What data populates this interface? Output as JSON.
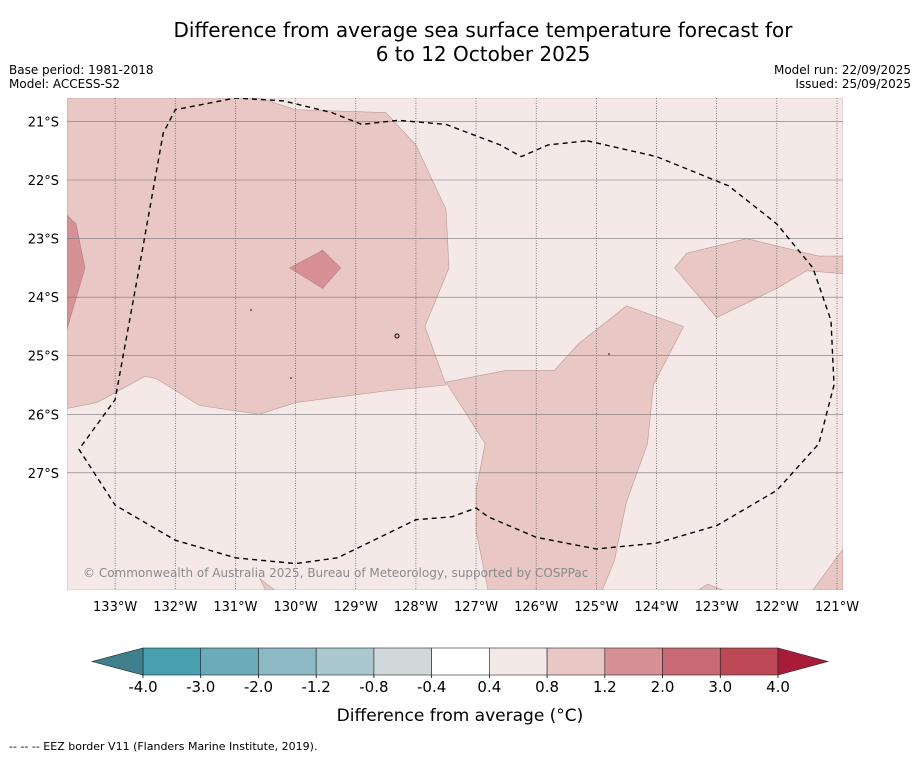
{
  "title_line1": "Difference from average sea surface temperature forecast for",
  "title_line2": "6 to 12 October 2025",
  "base_period": "Base period: 1981-2018",
  "model": "Model: ACCESS-S2",
  "model_run": "Model run: 22/09/2025",
  "issued": "Issued: 25/09/2025",
  "copyright": "© Commonwealth of Australia 2025, Bureau of Meteorology, supported by COSPPac",
  "footnote": "-- -- -- EEZ border V11 (Flanders Marine Institute, 2019).",
  "chart_data": {
    "type": "heatmap",
    "xlabel": "",
    "ylabel": "",
    "xlim": [
      -133.8,
      -120.9
    ],
    "ylim": [
      -29.0,
      -20.6
    ],
    "x_ticks": [
      -133,
      -132,
      -131,
      -130,
      -129,
      -128,
      -127,
      -126,
      -125,
      -124,
      -123,
      -122,
      -121
    ],
    "x_tick_labels": [
      "133°W",
      "132°W",
      "131°W",
      "130°W",
      "129°W",
      "128°W",
      "127°W",
      "126°W",
      "125°W",
      "124°W",
      "123°W",
      "122°W",
      "121°W"
    ],
    "y_ticks": [
      -21,
      -22,
      -23,
      -24,
      -25,
      -26,
      -27
    ],
    "y_tick_labels": [
      "21°S",
      "22°S",
      "23°S",
      "24°S",
      "25°S",
      "26°S",
      "27°S"
    ],
    "grid": true,
    "regions": [
      {
        "category": "0.4 to 0.8",
        "color": "#f5e9e8",
        "polygon": [
          [
            -133.8,
            -20.6
          ],
          [
            -120.9,
            -20.6
          ],
          [
            -120.9,
            -29.0
          ],
          [
            -133.8,
            -29.0
          ]
        ]
      },
      {
        "category": "0.8 to 1.2",
        "color": "#e8c7c4",
        "polygon": [
          [
            -133.8,
            -20.6
          ],
          [
            -130.6,
            -20.6
          ],
          [
            -130.0,
            -20.8
          ],
          [
            -128.5,
            -20.85
          ],
          [
            -128.0,
            -21.4
          ],
          [
            -127.5,
            -22.5
          ],
          [
            -127.45,
            -23.5
          ],
          [
            -127.85,
            -24.5
          ],
          [
            -127.5,
            -25.5
          ],
          [
            -128.5,
            -25.6
          ],
          [
            -130.0,
            -25.8
          ],
          [
            -130.6,
            -26.0
          ],
          [
            -131.6,
            -25.85
          ],
          [
            -132.3,
            -25.4
          ],
          [
            -132.5,
            -25.35
          ],
          [
            -133.3,
            -25.8
          ],
          [
            -133.8,
            -25.9
          ]
        ]
      },
      {
        "category": "0.8 to 1.2",
        "color": "#e8c7c4",
        "polygon": [
          [
            -127.5,
            -25.45
          ],
          [
            -126.5,
            -25.25
          ],
          [
            -125.7,
            -25.25
          ],
          [
            -125.3,
            -24.8
          ],
          [
            -124.5,
            -24.15
          ],
          [
            -123.55,
            -24.5
          ],
          [
            -124.05,
            -25.5
          ],
          [
            -124.15,
            -26.5
          ],
          [
            -124.5,
            -27.5
          ],
          [
            -124.7,
            -28.5
          ],
          [
            -124.9,
            -29.0
          ],
          [
            -126.8,
            -29.0
          ],
          [
            -127.0,
            -28.0
          ],
          [
            -127.0,
            -27.3
          ],
          [
            -126.85,
            -26.5
          ]
        ]
      },
      {
        "category": "0.8 to 1.2",
        "color": "#e8c7c4",
        "polygon": [
          [
            -123.0,
            -24.35
          ],
          [
            -122.0,
            -23.85
          ],
          [
            -121.5,
            -23.55
          ],
          [
            -120.9,
            -23.6
          ],
          [
            -120.9,
            -23.3
          ],
          [
            -121.3,
            -23.3
          ],
          [
            -122.5,
            -23.0
          ],
          [
            -123.5,
            -23.25
          ],
          [
            -123.7,
            -23.5
          ]
        ]
      },
      {
        "category": "0.8 to 1.2",
        "color": "#e8c7c4",
        "polygon": [
          [
            -120.9,
            -29.0
          ],
          [
            -121.4,
            -29.0
          ],
          [
            -120.9,
            -28.3
          ]
        ]
      },
      {
        "category": "0.8 to 1.2",
        "color": "#e8c7c4",
        "polygon": [
          [
            -130.5,
            -29.0
          ],
          [
            -130.6,
            -28.8
          ],
          [
            -130.35,
            -29.0
          ]
        ]
      },
      {
        "category": "0.8 to 1.2",
        "color": "#e8c7c4",
        "polygon": [
          [
            -123.3,
            -29.0
          ],
          [
            -123.15,
            -28.9
          ],
          [
            -122.9,
            -29.0
          ]
        ]
      },
      {
        "category": "1.2 to 2.0",
        "color": "#d69096",
        "polygon": [
          [
            -133.8,
            -22.6
          ],
          [
            -133.65,
            -22.75
          ],
          [
            -133.5,
            -23.5
          ],
          [
            -133.8,
            -24.55
          ]
        ]
      },
      {
        "category": "1.2 to 2.0",
        "color": "#d69096",
        "polygon": [
          [
            -130.1,
            -23.5
          ],
          [
            -129.55,
            -23.2
          ],
          [
            -129.25,
            -23.5
          ],
          [
            -129.55,
            -23.85
          ]
        ]
      }
    ],
    "eez_border": [
      [
        -125.15,
        -21.33
      ],
      [
        -124.0,
        -21.6
      ],
      [
        -122.8,
        -22.1
      ],
      [
        -122.0,
        -22.75
      ],
      [
        -121.4,
        -23.5
      ],
      [
        -121.1,
        -24.4
      ],
      [
        -121.05,
        -25.5
      ],
      [
        -121.3,
        -26.5
      ],
      [
        -122.0,
        -27.3
      ],
      [
        -123.0,
        -27.9
      ],
      [
        -124.0,
        -28.2
      ],
      [
        -125.0,
        -28.3
      ],
      [
        -126.0,
        -28.1
      ],
      [
        -126.8,
        -27.75
      ],
      [
        -127.0,
        -27.6
      ],
      [
        -127.4,
        -27.75
      ],
      [
        -128.0,
        -27.8
      ],
      [
        -128.6,
        -28.1
      ],
      [
        -129.3,
        -28.45
      ],
      [
        -130.0,
        -28.55
      ],
      [
        -131.0,
        -28.45
      ],
      [
        -132.0,
        -28.15
      ],
      [
        -133.0,
        -27.55
      ],
      [
        -133.6,
        -26.6
      ],
      [
        -133.0,
        -25.75
      ],
      [
        -132.6,
        -23.5
      ],
      [
        -132.2,
        -21.2
      ],
      [
        -132.0,
        -20.8
      ],
      [
        -131.0,
        -20.6
      ],
      [
        -130.2,
        -20.65
      ],
      [
        -129.4,
        -20.85
      ],
      [
        -128.9,
        -21.05
      ],
      [
        -128.3,
        -20.98
      ],
      [
        -127.5,
        -21.05
      ],
      [
        -126.6,
        -21.4
      ],
      [
        -126.25,
        -21.6
      ],
      [
        -125.8,
        -21.4
      ],
      [
        -125.15,
        -21.33
      ]
    ],
    "colorbar": {
      "label": "Difference from average (°C)",
      "ticks": [
        "-4.0",
        "-3.0",
        "-2.0",
        "-1.2",
        "-0.8",
        "-0.4",
        "0.4",
        "0.8",
        "1.2",
        "2.0",
        "3.0",
        "4.0"
      ],
      "colors": [
        "#48a0b0",
        "#6bacba",
        "#8cb9c4",
        "#aac8cd",
        "#d0d8da",
        "#ffffff",
        "#f5e9e8",
        "#e8c7c4",
        "#d69096",
        "#c96a74",
        "#bc4856"
      ],
      "under_color": "#3e818d",
      "over_color": "#a91c39"
    }
  }
}
